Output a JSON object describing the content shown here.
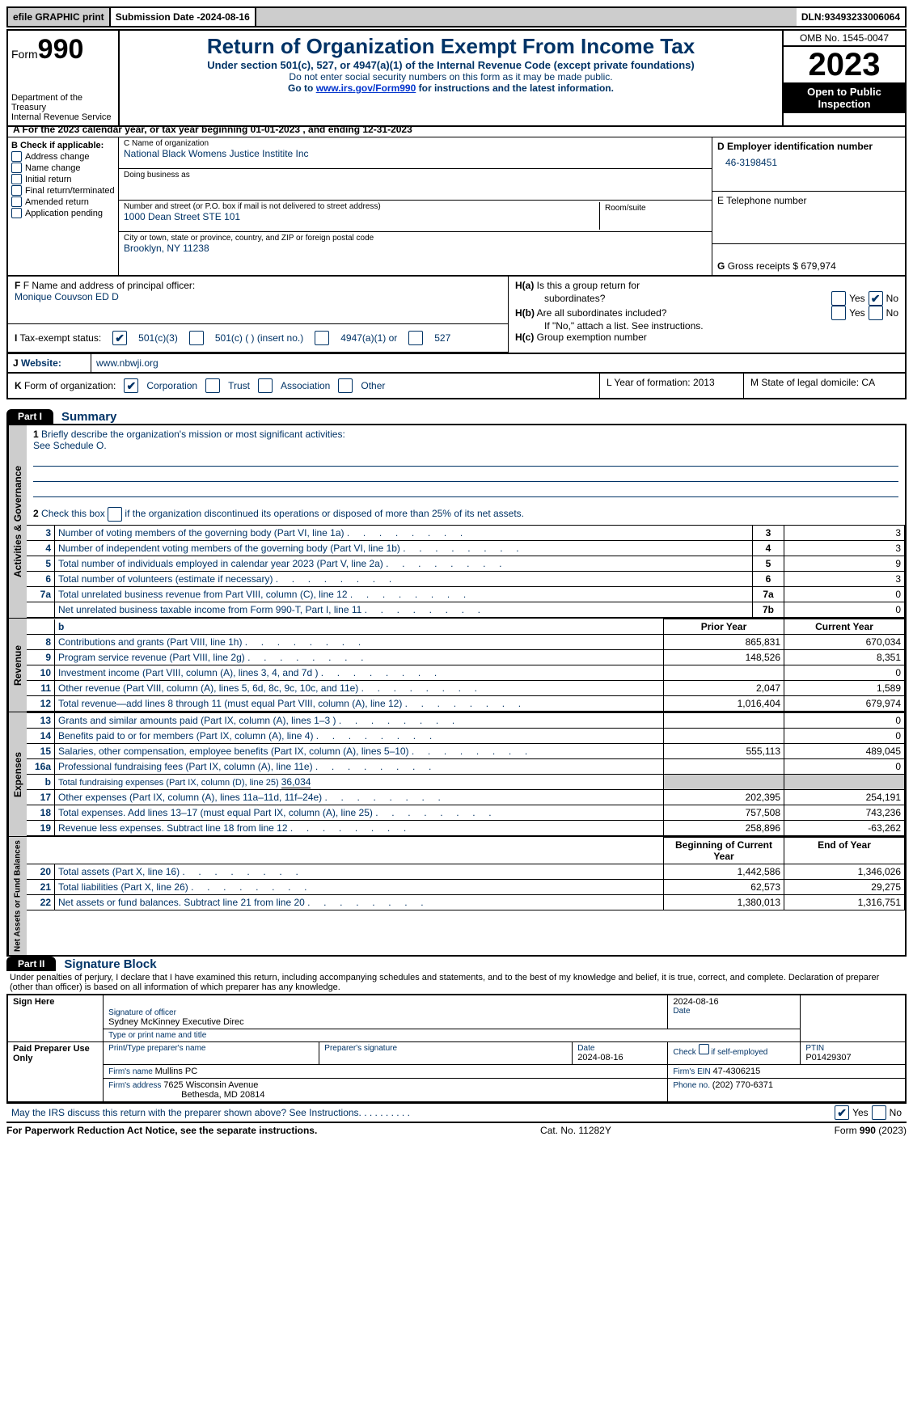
{
  "top": {
    "efile": "efile GRAPHIC print",
    "subdate_lbl": "Submission Date - ",
    "subdate": "2024-08-16",
    "dln_lbl": "DLN: ",
    "dln": "93493233006064"
  },
  "header": {
    "form_word": "Form",
    "form_num": "990",
    "dept1": "Department of the Treasury",
    "dept2": "Internal Revenue Service",
    "title": "Return of Organization Exempt From Income Tax",
    "subtitle": "Under section 501(c), 527, or 4947(a)(1) of the Internal Revenue Code (except private foundations)",
    "note1": "Do not enter social security numbers on this form as it may be made public.",
    "goto_pre": "Go to ",
    "goto_link": "www.irs.gov/Form990",
    "goto_post": " for instructions and the latest information.",
    "omb": "OMB No. 1545-0047",
    "year": "2023",
    "openpub": "Open to Public Inspection"
  },
  "rowA": "A  For the 2023 calendar year, or tax year beginning 01-01-2023    , and ending 12-31-2023",
  "boxB": {
    "hdr": "B Check if applicable:",
    "items": [
      "Address change",
      "Name change",
      "Initial return",
      "Final return/terminated",
      "Amended return",
      "Application pending"
    ]
  },
  "boxC": {
    "name_lbl": "C Name of organization",
    "name": "National Black Womens Justice Institite Inc",
    "dba_lbl": "Doing business as",
    "street_lbl": "Number and street (or P.O. box if mail is not delivered to street address)",
    "street": "1000 Dean Street STE 101",
    "room_lbl": "Room/suite",
    "city_lbl": "City or town, state or province, country, and ZIP or foreign postal code",
    "city": "Brooklyn, NY  11238"
  },
  "boxD": {
    "lbl": "D Employer identification number",
    "val": "46-3198451"
  },
  "boxE": {
    "lbl": "E Telephone number",
    "val": ""
  },
  "boxG": {
    "lbl": "G",
    "txt": "Gross receipts $ ",
    "val": "679,974"
  },
  "boxF": {
    "lbl": "F  Name and address of principal officer:",
    "name": "Monique Couvson ED D"
  },
  "boxH": {
    "ha_lbl": "H(a)  Is this a group return for subordinates?",
    "hb_lbl": "H(b)  Are all subordinates included?",
    "hb_note": "If \"No,\" attach a list. See instructions.",
    "hc_lbl": "H(c)  Group exemption number",
    "yes": "Yes",
    "no": "No"
  },
  "boxI": {
    "lbl": "I    Tax-exempt status:",
    "o1": "501(c)(3)",
    "o2": "501(c) (  ) (insert no.)",
    "o3": "4947(a)(1) or",
    "o4": "527"
  },
  "boxJ": {
    "lbl": "J    Website:",
    "val": "www.nbwji.org"
  },
  "boxK": {
    "lbl": "K Form of organization:",
    "o1": "Corporation",
    "o2": "Trust",
    "o3": "Association",
    "o4": "Other"
  },
  "boxL": {
    "txt": "L Year of formation: 2013"
  },
  "boxM": {
    "txt": "M State of legal domicile: CA"
  },
  "part1": {
    "tab": "Part I",
    "title": "Summary",
    "side1": "Activities & Governance",
    "side2": "Revenue",
    "side3": "Expenses",
    "side4": "Net Assets or Fund Balances",
    "l1": "Briefly describe the organization's mission or most significant activities:",
    "l1v": "See Schedule O.",
    "l2": "Check this box        if the organization discontinued its operations or disposed of more than 25% of its net assets.",
    "rows_gov": [
      {
        "n": "3",
        "d": "Number of voting members of the governing body (Part VI, line 1a)",
        "b": "3",
        "v": "3"
      },
      {
        "n": "4",
        "d": "Number of independent voting members of the governing body (Part VI, line 1b)",
        "b": "4",
        "v": "3"
      },
      {
        "n": "5",
        "d": "Total number of individuals employed in calendar year 2023 (Part V, line 2a)",
        "b": "5",
        "v": "9"
      },
      {
        "n": "6",
        "d": "Total number of volunteers (estimate if necessary)",
        "b": "6",
        "v": "3"
      },
      {
        "n": "7a",
        "d": "Total unrelated business revenue from Part VIII, column (C), line 12",
        "b": "7a",
        "v": "0"
      },
      {
        "n": "",
        "d": "Net unrelated business taxable income from Form 990-T, Part I, line 11",
        "b": "7b",
        "v": "0"
      }
    ],
    "hdr_b": "b",
    "hdr_prior": "Prior Year",
    "hdr_curr": "Current Year",
    "rows_rev": [
      {
        "n": "8",
        "d": "Contributions and grants (Part VIII, line 1h)",
        "p": "865,831",
        "c": "670,034"
      },
      {
        "n": "9",
        "d": "Program service revenue (Part VIII, line 2g)",
        "p": "148,526",
        "c": "8,351"
      },
      {
        "n": "10",
        "d": "Investment income (Part VIII, column (A), lines 3, 4, and 7d )",
        "p": "",
        "c": "0"
      },
      {
        "n": "11",
        "d": "Other revenue (Part VIII, column (A), lines 5, 6d, 8c, 9c, 10c, and 11e)",
        "p": "2,047",
        "c": "1,589"
      },
      {
        "n": "12",
        "d": "Total revenue—add lines 8 through 11 (must equal Part VIII, column (A), line 12)",
        "p": "1,016,404",
        "c": "679,974"
      }
    ],
    "rows_exp": [
      {
        "n": "13",
        "d": "Grants and similar amounts paid (Part IX, column (A), lines 1–3 )",
        "p": "",
        "c": "0"
      },
      {
        "n": "14",
        "d": "Benefits paid to or for members (Part IX, column (A), line 4)",
        "p": "",
        "c": "0"
      },
      {
        "n": "15",
        "d": "Salaries, other compensation, employee benefits (Part IX, column (A), lines 5–10)",
        "p": "555,113",
        "c": "489,045"
      },
      {
        "n": "16a",
        "d": "Professional fundraising fees (Part IX, column (A), line 11e)",
        "p": "",
        "c": "0"
      }
    ],
    "l16b_n": "b",
    "l16b": "Total fundraising expenses (Part IX, column (D), line 25) ",
    "l16b_v": "36,034",
    "rows_exp2": [
      {
        "n": "17",
        "d": "Other expenses (Part IX, column (A), lines 11a–11d, 11f–24e)",
        "p": "202,395",
        "c": "254,191"
      },
      {
        "n": "18",
        "d": "Total expenses. Add lines 13–17 (must equal Part IX, column (A), line 25)",
        "p": "757,508",
        "c": "743,236"
      },
      {
        "n": "19",
        "d": "Revenue less expenses. Subtract line 18 from line 12",
        "p": "258,896",
        "c": "-63,262"
      }
    ],
    "hdr_beg": "Beginning of Current Year",
    "hdr_end": "End of Year",
    "rows_net": [
      {
        "n": "20",
        "d": "Total assets (Part X, line 16)",
        "p": "1,442,586",
        "c": "1,346,026"
      },
      {
        "n": "21",
        "d": "Total liabilities (Part X, line 26)",
        "p": "62,573",
        "c": "29,275"
      },
      {
        "n": "22",
        "d": "Net assets or fund balances. Subtract line 21 from line 20",
        "p": "1,380,013",
        "c": "1,316,751"
      }
    ]
  },
  "part2": {
    "tab": "Part II",
    "title": "Signature Block",
    "perjury": "Under penalties of perjury, I declare that I have examined this return, including accompanying schedules and statements, and to the best of my knowledge and belief, it is true, correct, and complete. Declaration of preparer (other than officer) is based on all information of which preparer has any knowledge.",
    "sign_here": "Sign Here",
    "sig_officer_lbl": "Signature of officer",
    "sig_date": "2024-08-16",
    "date_lbl": "Date",
    "officer_name": "Sydney McKinney  Executive Direc",
    "type_lbl": "Type or print name and title",
    "paid_prep": "Paid Preparer Use Only",
    "prep_name_lbl": "Print/Type preparer's name",
    "prep_sig_lbl": "Preparer's signature",
    "prep_date_lbl": "Date",
    "prep_date": "2024-08-16",
    "check_self": "Check        if self-employed",
    "ptin_lbl": "PTIN",
    "ptin": "P01429307",
    "firm_name_lbl": "Firm's name   ",
    "firm_name": "Mullins PC",
    "firm_ein_lbl": "Firm's EIN  ",
    "firm_ein": "47-4306215",
    "firm_addr_lbl": "Firm's address ",
    "firm_addr1": "7625 Wisconsin Avenue",
    "firm_addr2": "Bethesda, MD  20814",
    "phone_lbl": "Phone no. ",
    "phone": "(202) 770-6371",
    "discuss": "May the IRS discuss this return with the preparer shown above? See Instructions.",
    "yes": "Yes",
    "no": "No"
  },
  "footer": {
    "left": "For Paperwork Reduction Act Notice, see the separate instructions.",
    "mid": "Cat. No. 11282Y",
    "right_pre": "Form ",
    "right_bold": "990",
    "right_post": " (2023)"
  }
}
